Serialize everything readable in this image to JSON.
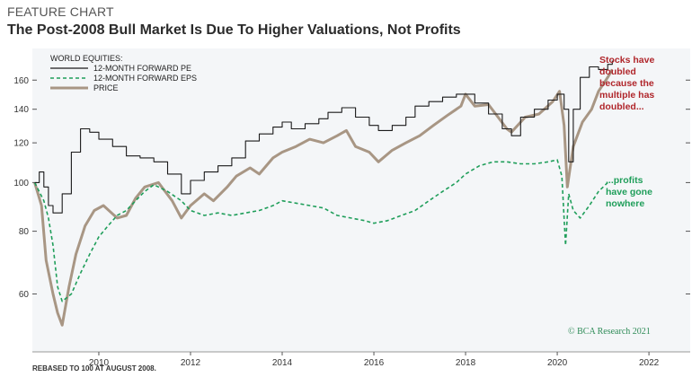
{
  "header": {
    "kicker": "FEATURE CHART",
    "title": "The Post-2008 Bull Market Is Due To Higher Valuations, Not Profits"
  },
  "footnote": "REBASED TO 100 AT AUGUST 2008.",
  "credit": "© BCA Research 2021",
  "colors": {
    "pe": "#1a1a1a",
    "eps": "#1f9e5a",
    "price": "#a89684",
    "annotation_red": "#b0262b",
    "annotation_green": "#1f9e5a",
    "panel_bg": "#f4f6f8"
  },
  "chart_data": {
    "type": "line",
    "legend_title": "WORLD EQUITIES:",
    "legend_position": "top-left",
    "y_scale": "log",
    "ylim": [
      46,
      185
    ],
    "yticks": [
      60,
      80,
      100,
      120,
      140,
      160
    ],
    "xlim": [
      2008.55,
      2022.9
    ],
    "xticks": [
      "2010",
      "2012",
      "2014",
      "2016",
      "2018",
      "2020",
      "2022"
    ],
    "grid": false,
    "series": [
      {
        "name": "12-MONTH FORWARD PE",
        "style": "step",
        "points": [
          [
            2008.6,
            100
          ],
          [
            2008.7,
            105
          ],
          [
            2008.8,
            98
          ],
          [
            2008.9,
            90
          ],
          [
            2009.0,
            87
          ],
          [
            2009.2,
            95
          ],
          [
            2009.4,
            115
          ],
          [
            2009.6,
            128
          ],
          [
            2009.8,
            126
          ],
          [
            2010.0,
            122
          ],
          [
            2010.3,
            118
          ],
          [
            2010.6,
            113
          ],
          [
            2010.9,
            112
          ],
          [
            2011.2,
            110
          ],
          [
            2011.5,
            104
          ],
          [
            2011.8,
            95
          ],
          [
            2012.0,
            101
          ],
          [
            2012.3,
            105
          ],
          [
            2012.6,
            108
          ],
          [
            2012.9,
            112
          ],
          [
            2013.2,
            121
          ],
          [
            2013.5,
            125
          ],
          [
            2013.8,
            129
          ],
          [
            2014.0,
            132
          ],
          [
            2014.2,
            128
          ],
          [
            2014.5,
            131
          ],
          [
            2014.8,
            134
          ],
          [
            2015.0,
            138
          ],
          [
            2015.3,
            141
          ],
          [
            2015.6,
            135
          ],
          [
            2015.9,
            130
          ],
          [
            2016.1,
            127
          ],
          [
            2016.4,
            130
          ],
          [
            2016.7,
            135
          ],
          [
            2016.9,
            142
          ],
          [
            2017.2,
            145
          ],
          [
            2017.5,
            148
          ],
          [
            2017.8,
            150
          ],
          [
            2018.0,
            150
          ],
          [
            2018.2,
            144
          ],
          [
            2018.5,
            137
          ],
          [
            2018.8,
            128
          ],
          [
            2019.0,
            124
          ],
          [
            2019.2,
            135
          ],
          [
            2019.5,
            140
          ],
          [
            2019.8,
            146
          ],
          [
            2020.0,
            150
          ],
          [
            2020.15,
            140
          ],
          [
            2020.25,
            110
          ],
          [
            2020.35,
            140
          ],
          [
            2020.5,
            162
          ],
          [
            2020.7,
            170
          ],
          [
            2020.9,
            168
          ],
          [
            2021.1,
            172
          ],
          [
            2021.2,
            175
          ]
        ]
      },
      {
        "name": "12-MONTH FORWARD EPS",
        "style": "dashed",
        "points": [
          [
            2008.6,
            100
          ],
          [
            2008.8,
            92
          ],
          [
            2008.9,
            85
          ],
          [
            2009.0,
            75
          ],
          [
            2009.1,
            62
          ],
          [
            2009.2,
            58
          ],
          [
            2009.4,
            60
          ],
          [
            2009.6,
            66
          ],
          [
            2009.8,
            72
          ],
          [
            2010.0,
            78
          ],
          [
            2010.2,
            82
          ],
          [
            2010.4,
            86
          ],
          [
            2010.6,
            88
          ],
          [
            2010.8,
            92
          ],
          [
            2011.0,
            96
          ],
          [
            2011.2,
            99
          ],
          [
            2011.5,
            96
          ],
          [
            2011.8,
            92
          ],
          [
            2012.0,
            88
          ],
          [
            2012.3,
            86
          ],
          [
            2012.6,
            87
          ],
          [
            2012.9,
            86
          ],
          [
            2013.2,
            87
          ],
          [
            2013.5,
            88
          ],
          [
            2013.8,
            90
          ],
          [
            2014.0,
            92
          ],
          [
            2014.3,
            91
          ],
          [
            2014.6,
            90
          ],
          [
            2014.9,
            89
          ],
          [
            2015.2,
            86
          ],
          [
            2015.5,
            85
          ],
          [
            2015.8,
            84
          ],
          [
            2016.0,
            83
          ],
          [
            2016.3,
            84
          ],
          [
            2016.6,
            86
          ],
          [
            2016.9,
            88
          ],
          [
            2017.2,
            92
          ],
          [
            2017.5,
            96
          ],
          [
            2017.8,
            100
          ],
          [
            2018.0,
            104
          ],
          [
            2018.3,
            108
          ],
          [
            2018.6,
            110
          ],
          [
            2018.9,
            110
          ],
          [
            2019.2,
            109
          ],
          [
            2019.5,
            109
          ],
          [
            2019.8,
            110
          ],
          [
            2020.0,
            111
          ],
          [
            2020.1,
            103
          ],
          [
            2020.18,
            75
          ],
          [
            2020.25,
            95
          ],
          [
            2020.35,
            88
          ],
          [
            2020.5,
            85
          ],
          [
            2020.7,
            90
          ],
          [
            2020.9,
            96
          ],
          [
            2021.1,
            100
          ]
        ]
      },
      {
        "name": "PRICE",
        "style": "solid",
        "points": [
          [
            2008.6,
            100
          ],
          [
            2008.75,
            90
          ],
          [
            2008.85,
            70
          ],
          [
            2009.0,
            60
          ],
          [
            2009.1,
            55
          ],
          [
            2009.2,
            52
          ],
          [
            2009.35,
            62
          ],
          [
            2009.5,
            72
          ],
          [
            2009.7,
            82
          ],
          [
            2009.9,
            88
          ],
          [
            2010.1,
            90
          ],
          [
            2010.4,
            85
          ],
          [
            2010.6,
            86
          ],
          [
            2010.8,
            93
          ],
          [
            2011.0,
            98
          ],
          [
            2011.3,
            100
          ],
          [
            2011.6,
            92
          ],
          [
            2011.8,
            85
          ],
          [
            2012.0,
            90
          ],
          [
            2012.3,
            95
          ],
          [
            2012.5,
            92
          ],
          [
            2012.8,
            98
          ],
          [
            2013.0,
            103
          ],
          [
            2013.3,
            107
          ],
          [
            2013.5,
            104
          ],
          [
            2013.8,
            112
          ],
          [
            2014.0,
            115
          ],
          [
            2014.3,
            118
          ],
          [
            2014.6,
            122
          ],
          [
            2014.9,
            120
          ],
          [
            2015.2,
            124
          ],
          [
            2015.4,
            127
          ],
          [
            2015.6,
            118
          ],
          [
            2015.9,
            115
          ],
          [
            2016.1,
            110
          ],
          [
            2016.4,
            116
          ],
          [
            2016.7,
            120
          ],
          [
            2017.0,
            124
          ],
          [
            2017.3,
            130
          ],
          [
            2017.6,
            136
          ],
          [
            2017.9,
            142
          ],
          [
            2018.0,
            150
          ],
          [
            2018.2,
            142
          ],
          [
            2018.5,
            143
          ],
          [
            2018.9,
            128
          ],
          [
            2019.0,
            126
          ],
          [
            2019.3,
            135
          ],
          [
            2019.6,
            137
          ],
          [
            2019.9,
            145
          ],
          [
            2020.05,
            152
          ],
          [
            2020.15,
            130
          ],
          [
            2020.22,
            98
          ],
          [
            2020.35,
            118
          ],
          [
            2020.55,
            132
          ],
          [
            2020.75,
            140
          ],
          [
            2020.9,
            152
          ],
          [
            2021.1,
            162
          ],
          [
            2021.2,
            168
          ]
        ]
      }
    ],
    "annotations": [
      {
        "lines": [
          "Stocks have",
          "doubled",
          "because the",
          "multiple has",
          "doubled..."
        ],
        "color": "red"
      },
      {
        "lines": [
          "...profits",
          "have gone",
          "nowhere"
        ],
        "color": "green"
      }
    ]
  }
}
